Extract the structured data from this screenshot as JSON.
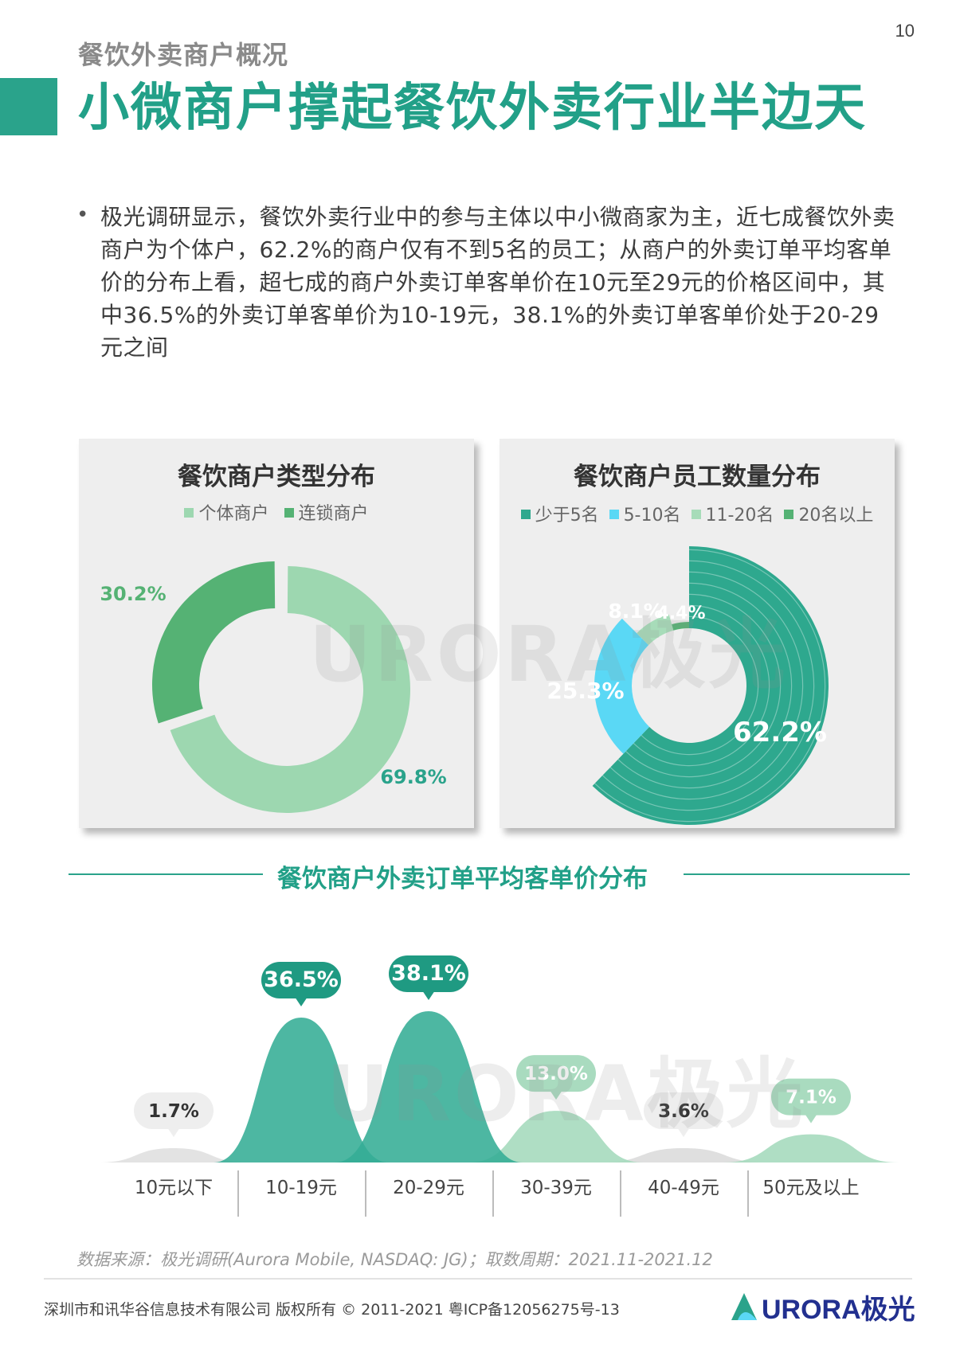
{
  "page_number": "10",
  "section_title": "餐饮外卖商户概况",
  "main_title": "小微商户撑起餐饮外卖行业半边天",
  "bullet_symbol": "•",
  "paragraph": "极光调研显示，餐饮外卖行业中的参与主体以中小微商家为主，近七成餐饮外卖商户为个体户，62.2%的商户仅有不到5名的员工；从商户的外卖订单平均客单价的分布上看，超七成的商户外卖订单客单价在10元至29元的价格区间中，其中36.5%的外卖订单客单价为10-19元，38.1%的外卖订单客单价处于20-29元之间",
  "watermark": "URORA极光",
  "source": "数据来源：极光调研(Aurora Mobile, NASDAQ: JG)；取数周期：2021.11-2021.12",
  "footer": {
    "copyright": "深圳市和讯华谷信息技术有限公司 版权所有 © 2011-2021 粤ICP备12056275号-13",
    "logo_text": "URORA极光"
  },
  "colors": {
    "brand_teal": "#2aa38b",
    "individual": "#9dd7b0",
    "chain": "#55b274",
    "lt5": "#2ea88e",
    "5to10": "#5ad8f5",
    "11to20": "#a7dcb9",
    "gt20": "#55b274"
  },
  "chart_data": [
    {
      "type": "pie",
      "title": "餐饮商户类型分布",
      "legend_position": "top",
      "categories": [
        "个体商户",
        "连锁商户"
      ],
      "values": [
        69.8,
        30.2
      ],
      "labels": [
        "69.8%",
        "30.2%"
      ],
      "colors": [
        "#9dd7b0",
        "#55b274"
      ]
    },
    {
      "type": "pie",
      "title": "餐饮商户员工数量分布",
      "legend_position": "top",
      "categories": [
        "少于5名",
        "5-10名",
        "11-20名",
        "20名以上"
      ],
      "values": [
        62.2,
        25.3,
        8.1,
        4.4
      ],
      "labels": [
        "62.2%",
        "25.3%",
        "8.1%",
        "4.4%"
      ],
      "colors": [
        "#2ea88e",
        "#5ad8f5",
        "#a7dcb9",
        "#55b274"
      ]
    },
    {
      "type": "area",
      "title": "餐饮商户外卖订单平均客单价分布",
      "categories": [
        "10元以下",
        "10-19元",
        "20-29元",
        "30-39元",
        "40-49元",
        "50元及以上"
      ],
      "values": [
        1.7,
        36.5,
        38.1,
        13.0,
        3.6,
        7.1
      ],
      "labels": [
        "1.7%",
        "36.5%",
        "38.1%",
        "13.0%",
        "3.6%",
        "7.1%"
      ],
      "colors": [
        "#e3e3e3",
        "#45b79e",
        "#45b79e",
        "#a9dbbf",
        "#e3e3e3",
        "#a9dbbf"
      ]
    }
  ]
}
